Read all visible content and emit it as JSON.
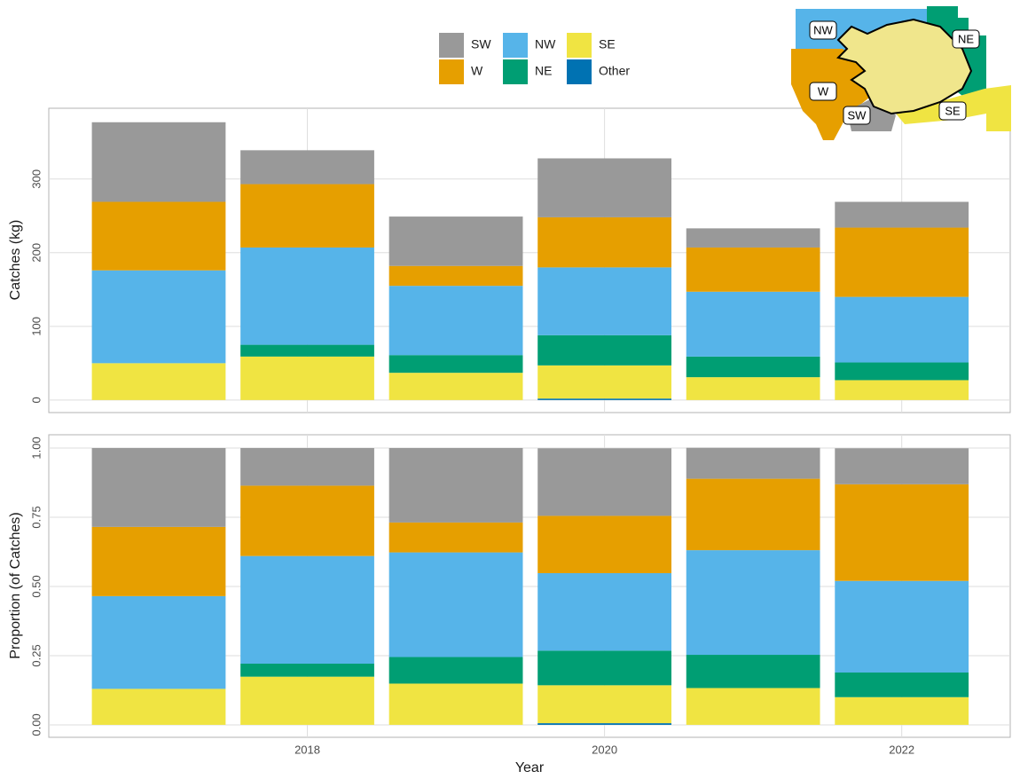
{
  "chart_data": [
    {
      "type": "bar",
      "stacked": true,
      "y_label": "Catches (kg)",
      "x": [
        2017,
        2018,
        2019,
        2020,
        2021,
        2022
      ],
      "xlim": [
        2016.26,
        2022.73
      ],
      "ylim": [
        -17,
        396
      ],
      "yticks": [
        0,
        100,
        200,
        300
      ],
      "grid": true,
      "series": [
        {
          "name": "SW",
          "color": "#999999",
          "values": [
            108,
            46,
            67,
            80,
            26,
            35
          ]
        },
        {
          "name": "W",
          "color": "#e69f00",
          "values": [
            93,
            86,
            27,
            68,
            60,
            94
          ]
        },
        {
          "name": "NW",
          "color": "#56b4e9",
          "values": [
            126,
            132,
            94,
            92,
            88,
            89
          ]
        },
        {
          "name": "NE",
          "color": "#009e73",
          "values": [
            0,
            16,
            24,
            41,
            28,
            24
          ]
        },
        {
          "name": "SE",
          "color": "#f0e442",
          "values": [
            50,
            59,
            37,
            45,
            31,
            27
          ]
        },
        {
          "name": "Other",
          "color": "#0072b2",
          "values": [
            0,
            0,
            0,
            2,
            0,
            0
          ]
        }
      ]
    },
    {
      "type": "bar",
      "stacked": true,
      "y_label": "Proportion (of Catches)",
      "x_label": "Year",
      "x": [
        2017,
        2018,
        2019,
        2020,
        2021,
        2022
      ],
      "xlim": [
        2016.26,
        2022.73
      ],
      "xticks": [
        2018,
        2020,
        2022
      ],
      "ylim": [
        -0.045,
        1.048
      ],
      "yticks": [
        {
          "value": 0,
          "label": "0.00"
        },
        {
          "value": 0.25,
          "label": "0.25"
        },
        {
          "value": 0.5,
          "label": "0.50"
        },
        {
          "value": 0.75,
          "label": "0.75"
        },
        {
          "value": 1,
          "label": "1.00"
        }
      ],
      "grid": true,
      "series": [
        {
          "values": [
            0.285,
            0.136,
            0.269,
            0.244,
            0.112,
            0.13
          ]
        },
        {
          "values": [
            0.25,
            0.254,
            0.108,
            0.207,
            0.258,
            0.349
          ]
        },
        {
          "values": [
            0.335,
            0.389,
            0.378,
            0.28,
            0.378,
            0.331
          ]
        },
        {
          "values": [
            0,
            0.047,
            0.096,
            0.125,
            0.12,
            0.089
          ]
        },
        {
          "values": [
            0.13,
            0.174,
            0.149,
            0.137,
            0.133,
            0.1
          ]
        },
        {
          "values": [
            0,
            0,
            0,
            0.006,
            0,
            0
          ]
        }
      ]
    }
  ],
  "map_labels": [
    "NW",
    "NE",
    "W",
    "SW",
    "SE"
  ]
}
